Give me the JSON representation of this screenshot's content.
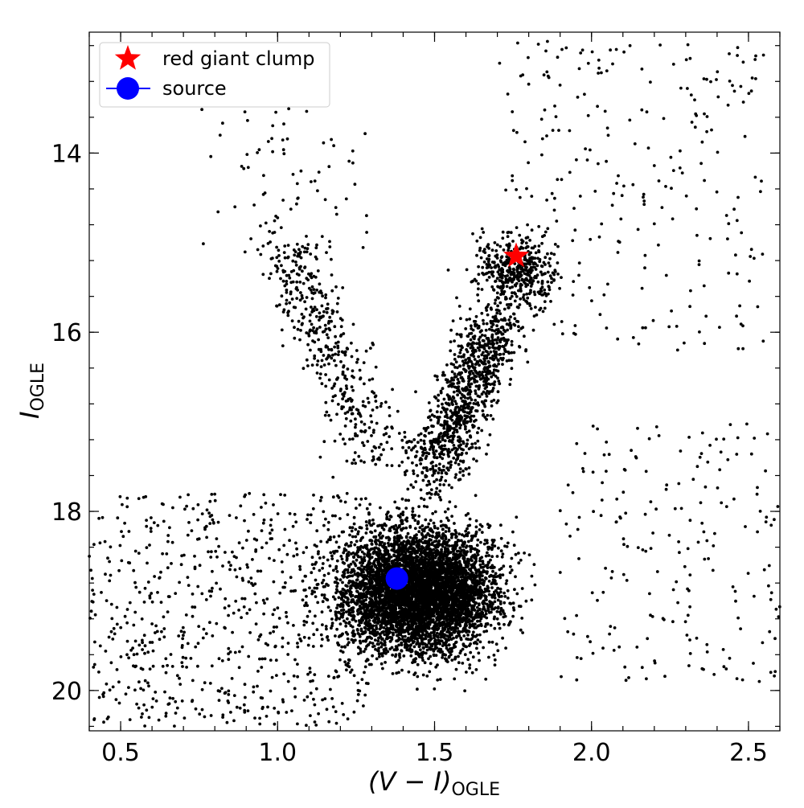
{
  "chart_data": {
    "type": "scatter",
    "xlabel": {
      "base": "(V − I)",
      "sub": "OGLE"
    },
    "ylabel": {
      "base": "I",
      "sub": "OGLE"
    },
    "xlim": [
      0.4,
      2.6
    ],
    "ylim": [
      20.45,
      12.65
    ],
    "y_inverted": true,
    "x_ticks": [
      0.5,
      1.0,
      1.5,
      2.0,
      2.5
    ],
    "x_tick_labels": [
      "0.5",
      "1.0",
      "1.5",
      "2.0",
      "2.5"
    ],
    "y_ticks": [
      14,
      16,
      18,
      20
    ],
    "y_tick_labels": [
      "14",
      "16",
      "18",
      "20"
    ],
    "x_minor_step": 0.1,
    "y_minor_step": 0.4,
    "grid": false,
    "legend_position": "top-left",
    "legend": [
      {
        "label": "red giant clump",
        "marker": "star",
        "color": "#ff0000"
      },
      {
        "label": "source",
        "marker": "circle-with-line",
        "color": "#0000ff"
      }
    ],
    "special_points": [
      {
        "name": "red giant clump",
        "x": 1.76,
        "y": 15.15,
        "marker": "star",
        "color": "#ff0000"
      },
      {
        "name": "source",
        "x": 1.38,
        "y": 18.75,
        "marker": "circle",
        "color": "#0000ff"
      }
    ],
    "field_stars": {
      "color": "#000000",
      "marker": "dot",
      "approx_count": 9000,
      "populations": [
        {
          "name": "main sequence turnoff / subgiants",
          "x_center": 1.45,
          "y_center": 18.9,
          "x_spread": 0.17,
          "y_spread": 0.48,
          "count": 5600
        },
        {
          "name": "blue disk stars",
          "x_min": 0.4,
          "x_max": 1.3,
          "y_min": 17.8,
          "y_max": 20.4,
          "count": 700
        },
        {
          "name": "red giant branch",
          "x_start": 1.48,
          "y_start": 17.6,
          "x_end": 1.7,
          "y_end": 15.9,
          "count": 1000
        },
        {
          "name": "red clump",
          "x_center": 1.76,
          "y_center": 15.3,
          "x_spread": 0.09,
          "y_spread": 0.28,
          "count": 450
        },
        {
          "name": "blue foreground sequence",
          "x_start": 1.32,
          "y_start": 17.4,
          "x_end": 1.02,
          "y_end": 15.0,
          "count": 450
        },
        {
          "name": "upper giants",
          "x_min": 1.7,
          "x_max": 2.55,
          "y_min": 12.75,
          "y_max": 16.2,
          "count": 260
        },
        {
          "name": "red scatter",
          "x_min": 1.9,
          "x_max": 2.6,
          "y_min": 17.0,
          "y_max": 19.9,
          "count": 200
        },
        {
          "name": "bright foreground",
          "x_min": 0.75,
          "x_max": 1.3,
          "y_min": 13.5,
          "y_max": 15.2,
          "count": 70
        }
      ]
    }
  }
}
